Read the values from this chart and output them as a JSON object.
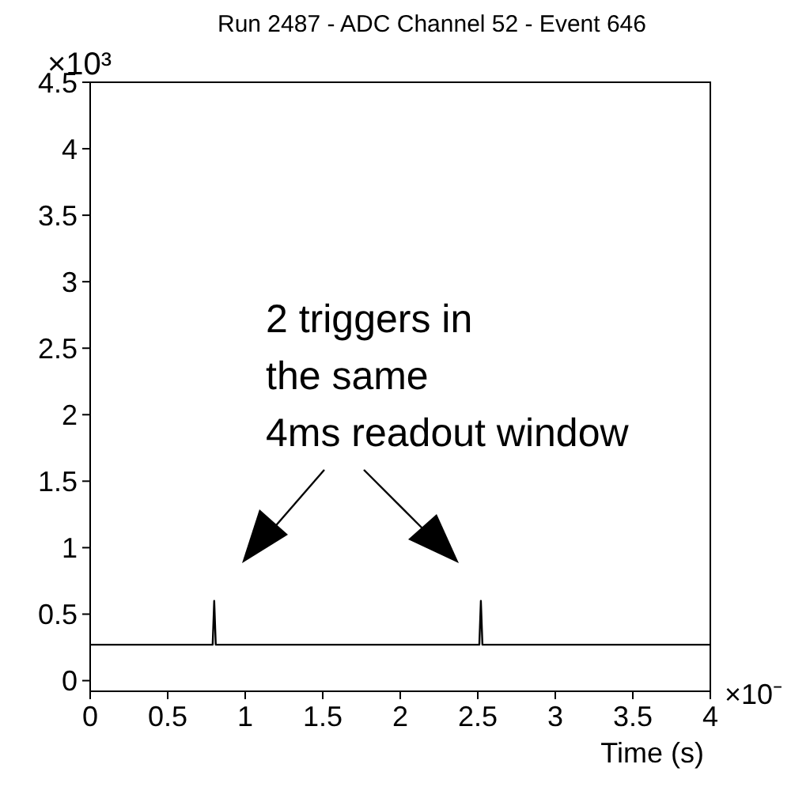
{
  "chart_data": {
    "type": "line",
    "title": "Run 2487 - ADC Channel 52 - Event 646",
    "xlabel": "Time (s)",
    "annotations": [
      "2 triggers in the same 4ms readout window",
      "×10³",
      "×10⁻"
    ],
    "x": [
      0,
      0.79,
      0.8,
      0.81,
      2.51,
      2.52,
      2.53,
      4
    ],
    "series": [
      {
        "color": "#000000",
        "values": [
          0.27,
          0.27,
          0.6,
          0.27,
          0.27,
          0.6,
          0.27,
          0.27
        ]
      }
    ],
    "xlim": [
      0,
      4
    ],
    "xticks": [
      0,
      0.5,
      1,
      1.5,
      2,
      2.5,
      3,
      3.5,
      4
    ],
    "ylim": [
      -0.08,
      4.5
    ],
    "yticks": [
      0,
      0.5,
      1,
      1.5,
      2,
      2.5,
      3,
      3.5,
      4,
      4.5
    ],
    "marker": "none",
    "line_style": "solid",
    "grid": false,
    "legend": false
  }
}
